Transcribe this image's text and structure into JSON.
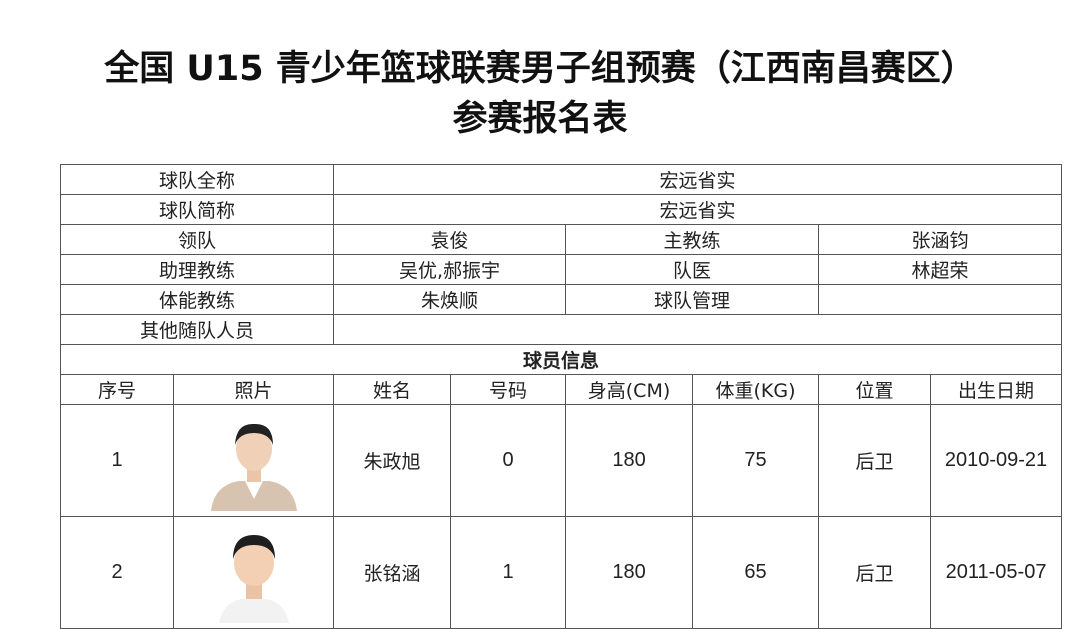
{
  "title": {
    "line1": "全国 U15 青少年篮球联赛男子组预赛（江西南昌赛区）",
    "line2": "参赛报名表"
  },
  "team": {
    "full_name_label": "球队全称",
    "full_name": "宏远省实",
    "short_name_label": "球队简称",
    "short_name": "宏远省实",
    "leader_label": "领队",
    "leader": "袁俊",
    "head_coach_label": "主教练",
    "head_coach": "张涵钧",
    "assistant_coach_label": "助理教练",
    "assistant_coach": "吴优,郝振宇",
    "doctor_label": "队医",
    "doctor": "林超荣",
    "fitness_coach_label": "体能教练",
    "fitness_coach": "朱焕顺",
    "manager_label": "球队管理",
    "manager": "",
    "others_label": "其他随队人员",
    "others": ""
  },
  "players": {
    "section_title": "球员信息",
    "headers": [
      "序号",
      "照片",
      "姓名",
      "号码",
      "身高(CM)",
      "体重(KG)",
      "位置",
      "出生日期"
    ],
    "rows": [
      {
        "no": "1",
        "name": "朱政旭",
        "number": "0",
        "height": "180",
        "weight": "75",
        "position": "后卫",
        "birth": "2010-09-21"
      },
      {
        "no": "2",
        "name": "张铭涵",
        "number": "1",
        "height": "180",
        "weight": "65",
        "position": "后卫",
        "birth": "2011-05-07"
      }
    ]
  }
}
